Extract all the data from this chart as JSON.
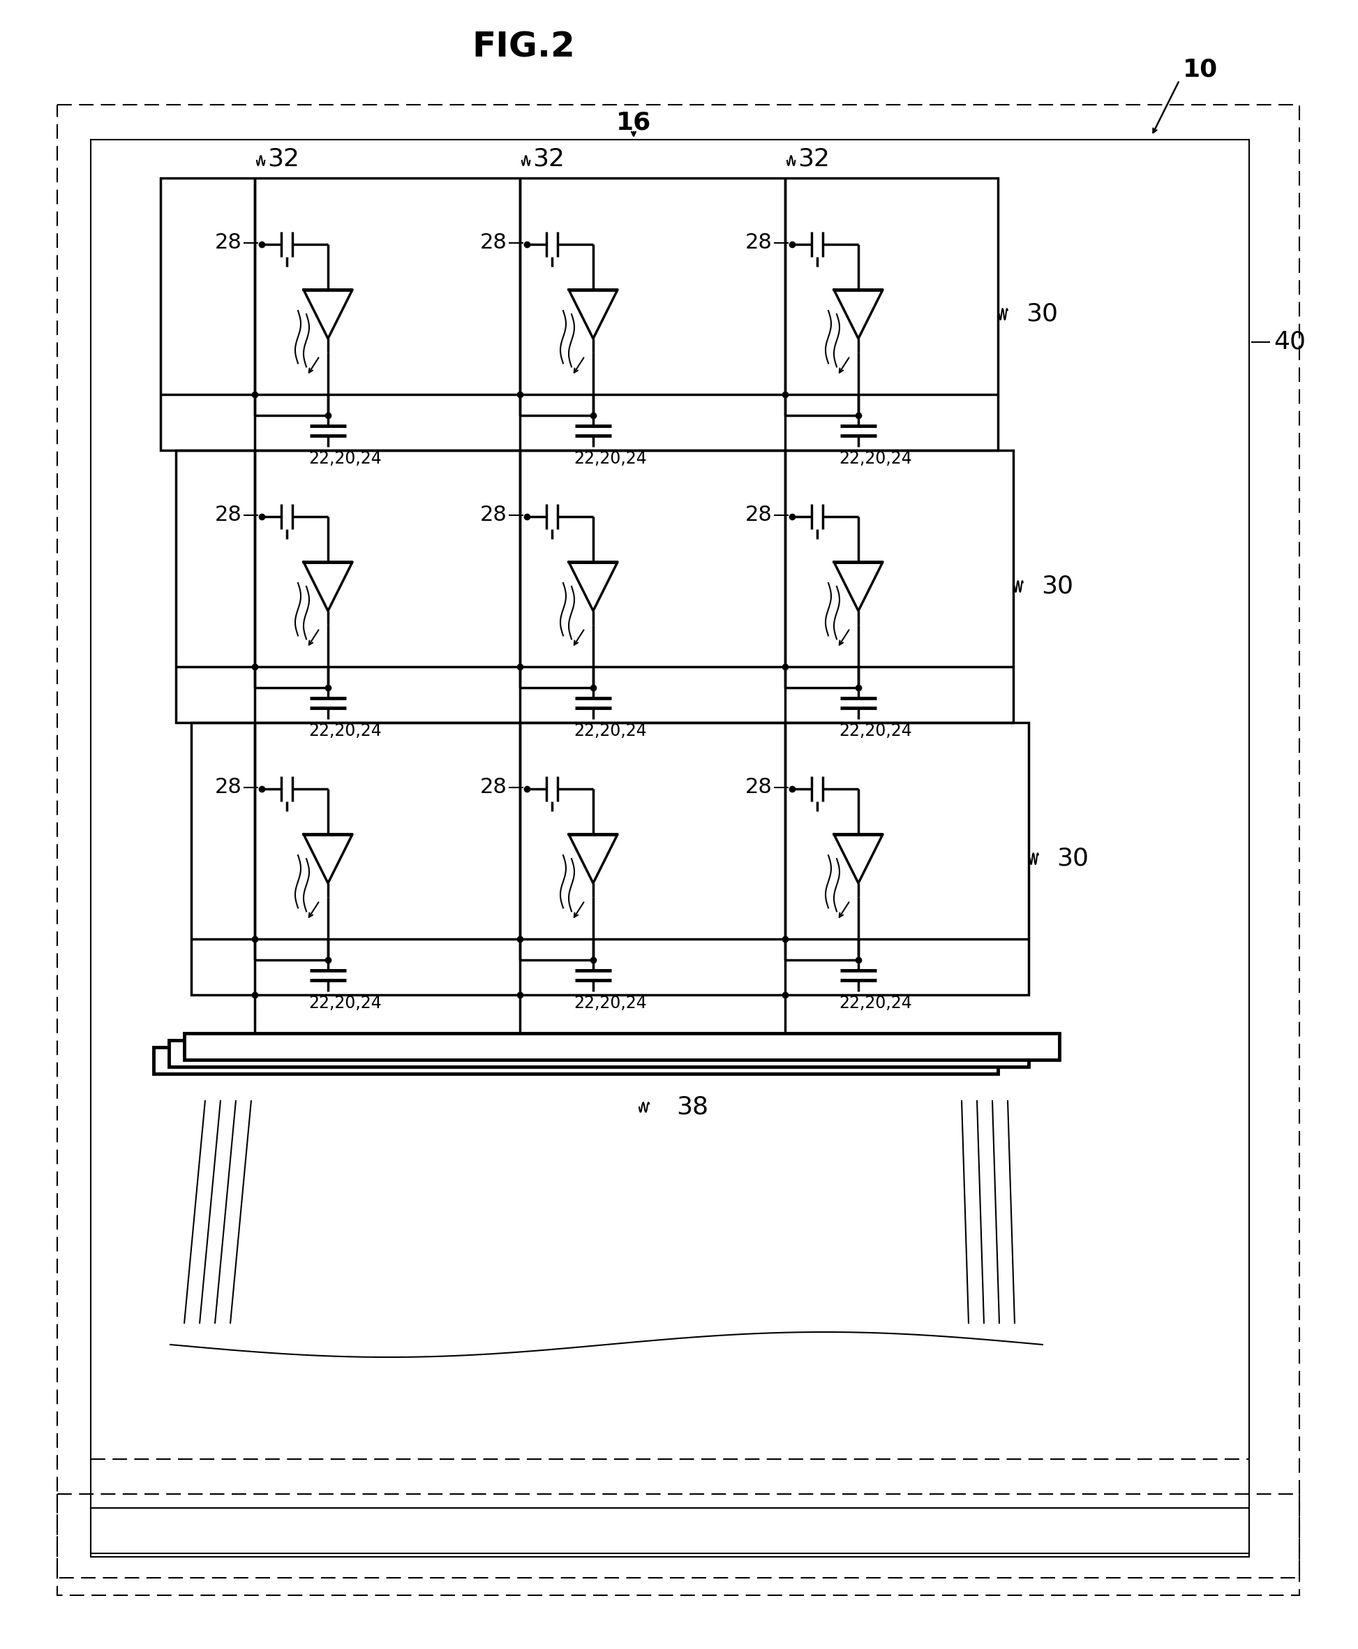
{
  "title": "FIG.2",
  "bg_color": "#ffffff",
  "label_10": "10",
  "label_16": "16",
  "label_40": "40",
  "label_28": "28",
  "label_32": "32",
  "label_30": "30",
  "label_38": "38",
  "label_22_20_24": "22,20,24",
  "fig_width": 19.46,
  "fig_height": 23.62,
  "lw_thin": 1.5,
  "lw_med": 2.5,
  "lw_thick": 3.5,
  "font_title": 36,
  "font_label": 26,
  "font_cell": 22
}
